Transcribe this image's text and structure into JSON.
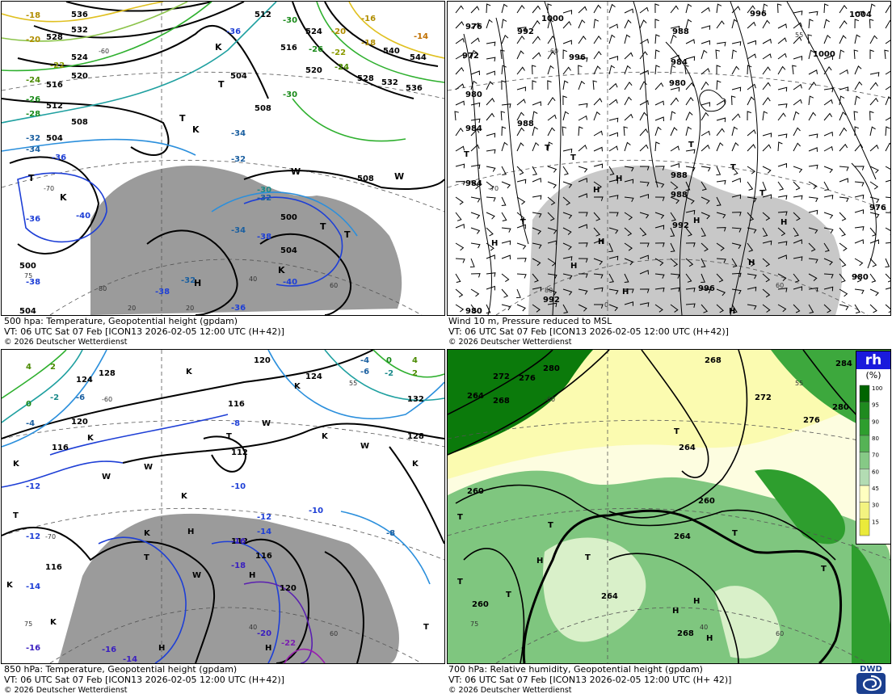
{
  "panels": [
    {
      "line1": "500 hpa: Temperature, Geopotential height (gpdam)",
      "line2": "VT: 06 UTC Sat  07 Feb [ICON13 2026-02-05 12:00 UTC  (H+42)]",
      "copyright": "© 2026 Deutscher Wetterdienst",
      "contour_labels": [
        "536",
        "532",
        "528",
        "524",
        "520",
        "516",
        "512",
        "508",
        "504",
        "500",
        "512",
        "516",
        "520",
        "524",
        "528",
        "532",
        "536",
        "540",
        "544",
        "504",
        "508",
        "504",
        "500",
        "508",
        "504"
      ],
      "temp_labels": [
        "-18",
        "-20",
        "-22",
        "-24",
        "-26",
        "-28",
        "-32",
        "-34",
        "-36",
        "-36",
        "-38",
        "-40",
        "-36",
        "-34",
        "-32",
        "-30",
        "-34",
        "-32",
        "-30",
        "-32",
        "-38",
        "-40",
        "-36",
        "-38",
        "-20",
        "-22",
        "-24",
        "-26",
        "-30",
        "-16",
        "-18",
        "-14"
      ]
    },
    {
      "line1": "Wind 10 m, Pressure reduced to MSL",
      "line2": "VT: 06 UTC Sat  07 Feb [ICON13 2026-02-05 12:00 UTC  (H+42)]",
      "copyright": "© 2026 Deutscher Wetterdienst",
      "contour_labels": [
        "1000",
        "992",
        "996",
        "988",
        "996",
        "1004",
        "1000",
        "976",
        "972",
        "984",
        "980",
        "980",
        "984",
        "988",
        "976",
        "980",
        "984",
        "988",
        "992",
        "996",
        "992",
        "988",
        "980"
      ]
    },
    {
      "line1": "850 hPa:  Temperature, Geopotential height (gpdam)",
      "line2": "VT: 06 UTC Sat  07 Feb [ICON13 2026-02-05 12:00 UTC  (H+42)]",
      "copyright": "© 2026 Deutscher Wetterdienst",
      "contour_labels": [
        "120",
        "124",
        "128",
        "116",
        "112",
        "124",
        "132",
        "128",
        "116",
        "120",
        "116",
        "112",
        "116",
        "120"
      ],
      "temp_labels": [
        "-4",
        "-2",
        "0",
        "2",
        "4",
        "-6",
        "-8",
        "-10",
        "-12",
        "-12",
        "-14",
        "-10",
        "-12",
        "-14",
        "-16",
        "-18",
        "-20",
        "-22",
        "-16",
        "-14",
        "-8",
        "-6",
        "-2",
        "0",
        "2",
        "4",
        "-4",
        "-16"
      ]
    },
    {
      "line1": "700 hPa:  Relative humidity, Geopotential height (gpdam)",
      "line2": "VT: 06 UTC Sat  07 Feb [ICON13  2026-02-05 12:00 UTC  (H+ 42)]",
      "copyright": "© 2026 Deutscher Wetterdienst",
      "contour_labels": [
        "268",
        "272",
        "276",
        "280",
        "264",
        "268",
        "284",
        "272",
        "276",
        "280",
        "264",
        "260",
        "260",
        "264",
        "268",
        "260"
      ]
    }
  ],
  "pressure_markers": [
    "T",
    "K",
    "H",
    "W"
  ],
  "grid_labels": [
    "-60",
    "-70",
    "-80",
    "55",
    "60",
    "70",
    "75",
    "80",
    "20",
    "40",
    "0"
  ],
  "legend": {
    "title": "rh",
    "unit": "(%)",
    "ticks": [
      "100",
      "95",
      "90",
      "80",
      "70",
      "60",
      "45",
      "30",
      "15"
    ],
    "colors": [
      "#006400",
      "#1f8a1f",
      "#2e9e2e",
      "#55b355",
      "#86c986",
      "#b3dcb3",
      "#ffffc0",
      "#f3f380",
      "#eaea3a"
    ]
  },
  "logo_text": "DWD",
  "colors": {
    "land_mask": "#9b9b9b",
    "geopotential": "#000000",
    "temp_cold": "#1e3fd6",
    "temp_mid": "#2b8fdc",
    "temp_warm": "#e0c020",
    "temp_green": "#2fb02f",
    "rh_dark": "#0b7a0b",
    "rh_light": "#c6e8b6",
    "rh_dry": "#f8f8a8"
  }
}
